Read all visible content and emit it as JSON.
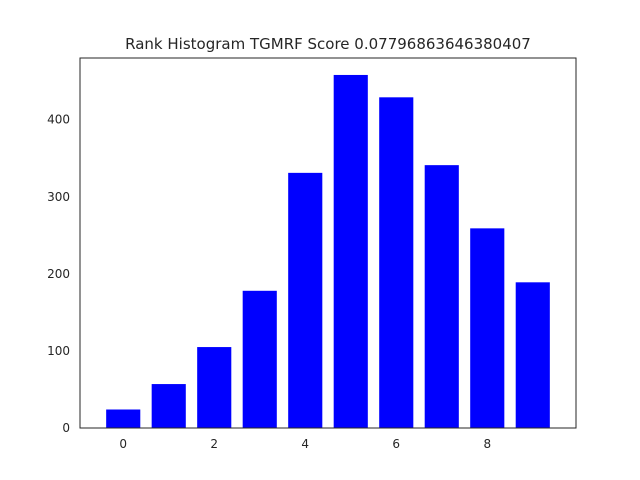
{
  "chart_data": {
    "type": "bar",
    "title": "Rank Histogram TGMRF Score 0.07796863646380407",
    "xlabel": "",
    "ylabel": "",
    "x": [
      0,
      1,
      2,
      3,
      4,
      5,
      6,
      7,
      8,
      9
    ],
    "values": [
      24,
      57,
      105,
      178,
      331,
      458,
      429,
      341,
      259,
      189
    ],
    "xlim": [
      -0.95,
      9.95
    ],
    "ylim": [
      0,
      480
    ],
    "xticks": [
      0,
      2,
      4,
      6,
      8
    ],
    "yticks": [
      0,
      100,
      200,
      300,
      400
    ],
    "xtick_labels": [
      "0",
      "2",
      "4",
      "6",
      "8"
    ],
    "ytick_labels": [
      "0",
      "100",
      "200",
      "300",
      "400"
    ],
    "bar_color": "#0000ff",
    "grid": false,
    "legend": "none"
  }
}
